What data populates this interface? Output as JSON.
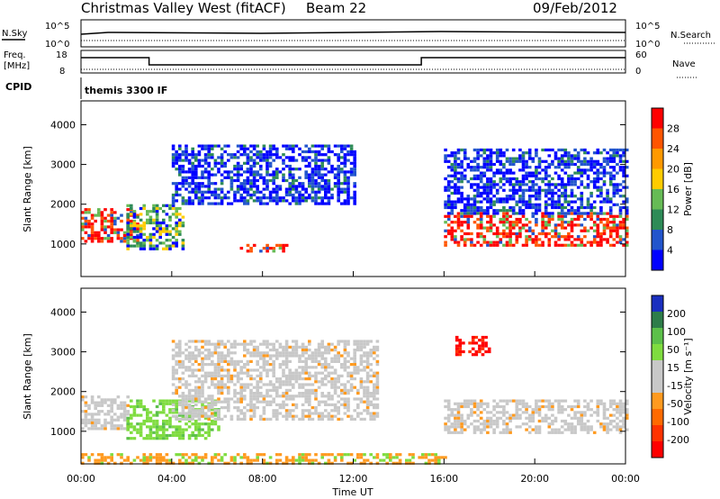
{
  "header": {
    "station": "Christmas Valley West (fitACF)",
    "beam": "Beam 22",
    "date": "09/Feb/2012"
  },
  "mini_labels": {
    "nsky": "N.Sky",
    "nsearch": "N.Search",
    "freq": "Freq.",
    "freq_unit": "[MHz]",
    "nave": "Nave",
    "cpid": "CPID",
    "mode": "themis 3300 IF"
  },
  "noise_panel": {
    "left_ticks": [
      "10^5",
      "10^0"
    ],
    "right_ticks": [
      "10^5",
      "10^0"
    ]
  },
  "freq_panel": {
    "left_ticks": [
      "18",
      "8"
    ],
    "right_ticks": [
      "60",
      "0"
    ]
  },
  "colors": {
    "power": [
      "#0000ff",
      "#2255cc",
      "#2e8b57",
      "#66bb55",
      "#ffcc00",
      "#ff9900",
      "#ff5500",
      "#ff0000"
    ],
    "velocity": [
      "#1a2fbf",
      "#2e7d4a",
      "#5cc04a",
      "#7fdc3f",
      "#c8c8c8",
      "#c8c8c8",
      "#ff9a1f",
      "#ff6a00",
      "#ff3300",
      "#ff0000"
    ],
    "gray": "#c8c8c8"
  },
  "chart_data": [
    {
      "type": "heatmap",
      "panel": "power",
      "xlabel": "Time UT",
      "ylabel": "Slant Range [km]",
      "xlim": [
        0,
        24
      ],
      "ylim": [
        180,
        4600
      ],
      "y_ticks": [
        "1000",
        "2000",
        "3000",
        "4000"
      ],
      "x_ticks": [
        "00:00",
        "04:00",
        "08:00",
        "12:00",
        "16:00",
        "20:00",
        "00:00"
      ],
      "colorbar_label": "Power [dB]",
      "colorbar_ticks": [
        "4",
        "8",
        "12",
        "16",
        "20",
        "24",
        "28"
      ],
      "regions": [
        {
          "t0": 0.0,
          "t1": 2.5,
          "r0": 1100,
          "r1": 1900,
          "level": "high"
        },
        {
          "t0": 2.0,
          "t1": 4.5,
          "r0": 900,
          "r1": 2000,
          "level": "mid"
        },
        {
          "t0": 7.0,
          "t1": 9.0,
          "r0": 800,
          "r1": 1000,
          "level": "high"
        },
        {
          "t0": 4.0,
          "t1": 12.0,
          "r0": 2000,
          "r1": 3500,
          "level": "low"
        },
        {
          "t0": 16.0,
          "t1": 24.0,
          "r0": 1000,
          "r1": 1800,
          "level": "high"
        },
        {
          "t0": 16.0,
          "t1": 24.0,
          "r0": 1800,
          "r1": 3400,
          "level": "low"
        }
      ]
    },
    {
      "type": "heatmap",
      "panel": "velocity",
      "xlabel": "Time UT",
      "ylabel": "Slant Range [km]",
      "xlim": [
        0,
        24
      ],
      "ylim": [
        180,
        4600
      ],
      "y_ticks": [
        "1000",
        "2000",
        "3000",
        "4000"
      ],
      "x_ticks": [
        "00:00",
        "04:00",
        "08:00",
        "12:00",
        "16:00",
        "20:00",
        "00:00"
      ],
      "colorbar_label": "Velocity [m s⁻¹]",
      "colorbar_ticks": [
        "200",
        "100",
        "50",
        "15",
        "-15",
        "-50",
        "-100",
        "-200"
      ],
      "regions": [
        {
          "t0": 0.0,
          "t1": 2.0,
          "r0": 1100,
          "r1": 1900,
          "level": "gray"
        },
        {
          "t0": 2.0,
          "t1": 6.0,
          "r0": 800,
          "r1": 1800,
          "level": "green"
        },
        {
          "t0": 4.0,
          "t1": 13.0,
          "r0": 1300,
          "r1": 3300,
          "level": "gray"
        },
        {
          "t0": 16.0,
          "t1": 24.0,
          "r0": 1000,
          "r1": 1800,
          "level": "gray"
        },
        {
          "t0": 16.5,
          "t1": 18.0,
          "r0": 2900,
          "r1": 3400,
          "level": "red"
        },
        {
          "t0": 0.0,
          "t1": 16.0,
          "r0": 180,
          "r1": 450,
          "level": "orange"
        }
      ]
    }
  ]
}
